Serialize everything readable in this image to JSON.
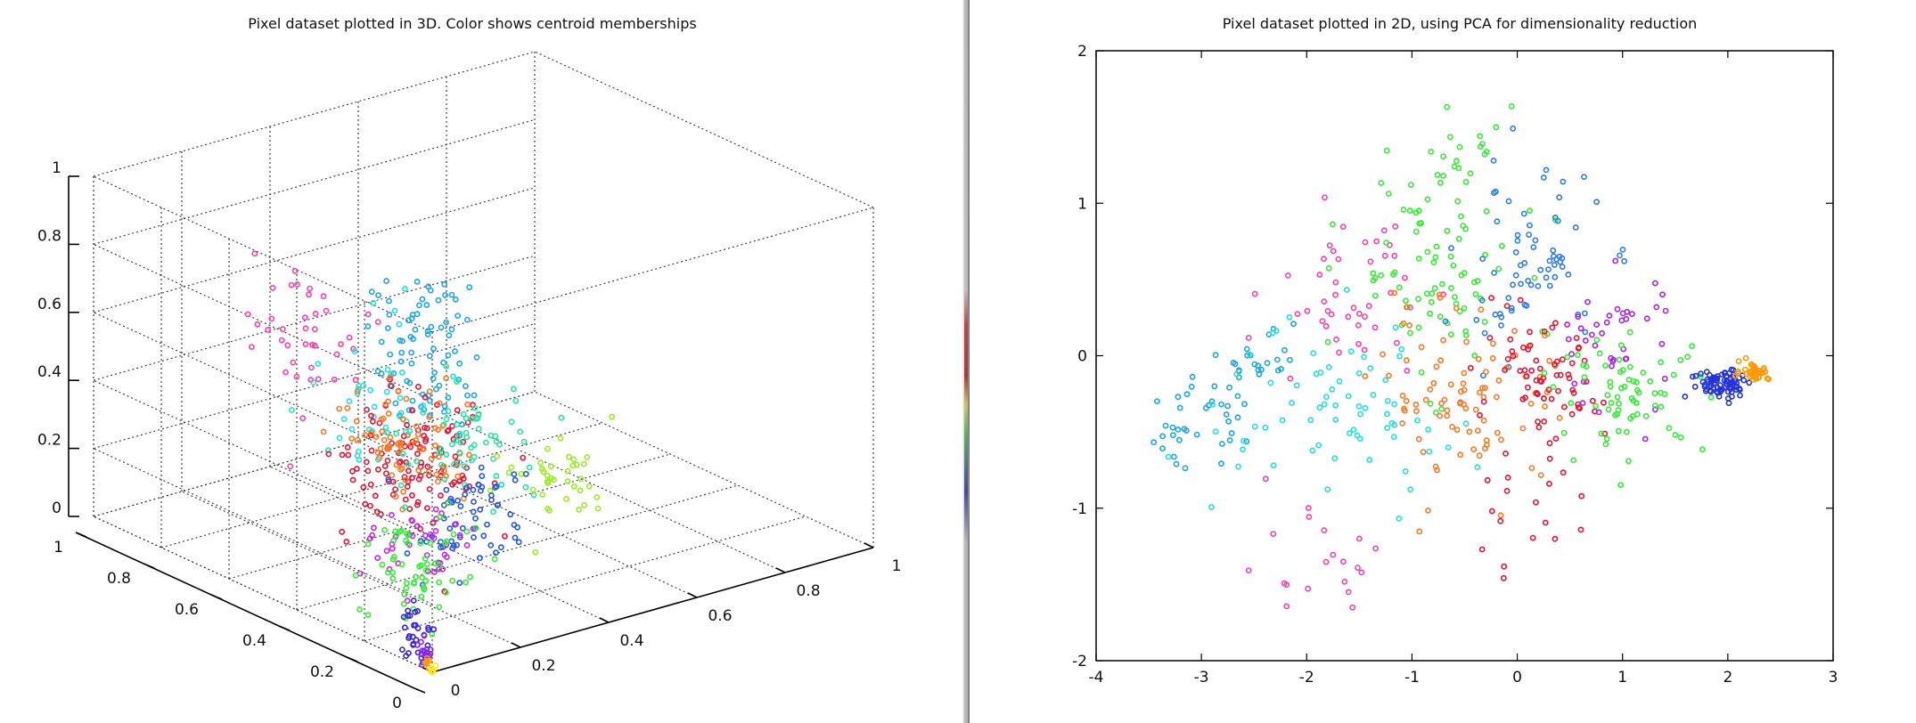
{
  "chart_data": [
    {
      "type": "scatter",
      "title": "Pixel dataset plotted in 3D. Color shows centroid memberships",
      "projection": "3d",
      "xlim": [
        0,
        1
      ],
      "ylim": [
        0,
        1
      ],
      "zlim": [
        0,
        1
      ],
      "z_ticks": [
        "0",
        "0.2",
        "0.4",
        "0.6",
        "0.8",
        "1"
      ],
      "y_ticks": [
        "0",
        "0.2",
        "0.4",
        "0.6",
        "0.8",
        "1"
      ],
      "x_ticks": [
        "0",
        "0.2",
        "0.4",
        "0.6",
        "0.8",
        "1"
      ],
      "grid": true,
      "marker": "small open circle",
      "series": [
        {
          "color": "#1aa6e8",
          "n": 80,
          "center": [
            0.12,
            0.18,
            0.82
          ],
          "spread": [
            0.05,
            0.05,
            0.12
          ]
        },
        {
          "color": "#ff3fb0",
          "n": 40,
          "center": [
            0.05,
            0.45,
            0.78
          ],
          "spread": [
            0.05,
            0.08,
            0.12
          ]
        },
        {
          "color": "#26e0e0",
          "n": 40,
          "center": [
            0.1,
            0.28,
            0.62
          ],
          "spread": [
            0.06,
            0.06,
            0.1
          ]
        },
        {
          "color": "#ee1133",
          "n": 120,
          "center": [
            0.14,
            0.24,
            0.45
          ],
          "spread": [
            0.07,
            0.07,
            0.1
          ]
        },
        {
          "color": "#ff7722",
          "n": 70,
          "center": [
            0.12,
            0.26,
            0.53
          ],
          "spread": [
            0.06,
            0.06,
            0.07
          ]
        },
        {
          "color": "#22e8a0",
          "n": 60,
          "center": [
            0.18,
            0.14,
            0.52
          ],
          "spread": [
            0.06,
            0.06,
            0.08
          ]
        },
        {
          "color": "#99ee22",
          "n": 40,
          "center": [
            0.36,
            0.1,
            0.4
          ],
          "spread": [
            0.07,
            0.05,
            0.07
          ]
        },
        {
          "color": "#2255ee",
          "n": 60,
          "center": [
            0.2,
            0.16,
            0.3
          ],
          "spread": [
            0.06,
            0.05,
            0.07
          ]
        },
        {
          "color": "#cc22ee",
          "n": 40,
          "center": [
            0.14,
            0.22,
            0.2
          ],
          "spread": [
            0.05,
            0.05,
            0.06
          ]
        },
        {
          "color": "#33ee33",
          "n": 60,
          "center": [
            0.08,
            0.16,
            0.2
          ],
          "spread": [
            0.05,
            0.05,
            0.1
          ]
        },
        {
          "color": "#3322dd",
          "n": 30,
          "center": [
            0.02,
            0.08,
            0.07
          ],
          "spread": [
            0.015,
            0.02,
            0.04
          ]
        },
        {
          "color": "#8822ee",
          "n": 15,
          "center": [
            0.01,
            0.04,
            0.03
          ],
          "spread": [
            0.01,
            0.01,
            0.02
          ]
        },
        {
          "color": "#ff9900",
          "n": 8,
          "center": [
            0.005,
            0.02,
            0.015
          ],
          "spread": [
            0.005,
            0.005,
            0.01
          ]
        },
        {
          "color": "#ffee00",
          "n": 10,
          "center": [
            0.0,
            0.0,
            0.0
          ],
          "spread": [
            0.005,
            0.005,
            0.01
          ]
        }
      ]
    },
    {
      "type": "scatter",
      "title": "Pixel dataset plotted in 2D, using PCA for dimensionality reduction",
      "xlim": [
        -4,
        3
      ],
      "ylim": [
        -2,
        2
      ],
      "x_ticks": [
        "-4",
        "-3",
        "-2",
        "-1",
        "0",
        "1",
        "2",
        "3"
      ],
      "y_ticks": [
        "-2",
        "-1",
        "0",
        "1",
        "2"
      ],
      "marker": "small open circle",
      "series": [
        {
          "color": "#1aa6e8",
          "n": 60,
          "path": [
            [
              -3.3,
              -0.6
            ],
            [
              -2.3,
              0.0
            ]
          ],
          "spread": [
            0.15,
            0.12
          ]
        },
        {
          "color": "#26e0e0",
          "n": 70,
          "center": [
            -1.7,
            -0.35
          ],
          "spread": [
            0.55,
            0.3
          ]
        },
        {
          "color": "#ff3fb0",
          "n": 45,
          "center": [
            -1.6,
            0.35
          ],
          "spread": [
            0.4,
            0.25
          ]
        },
        {
          "color": "#ff3fb0",
          "n": 20,
          "center": [
            -1.9,
            -1.35
          ],
          "spread": [
            0.4,
            0.2
          ]
        },
        {
          "color": "#33ee33",
          "n": 80,
          "center": [
            -0.8,
            0.55
          ],
          "spread": [
            0.4,
            0.35
          ]
        },
        {
          "color": "#33ee33",
          "n": 20,
          "center": [
            -0.6,
            1.3
          ],
          "spread": [
            0.3,
            0.2
          ]
        },
        {
          "color": "#2d7de8",
          "n": 70,
          "center": [
            0.1,
            0.6
          ],
          "spread": [
            0.35,
            0.3
          ]
        },
        {
          "color": "#ff7722",
          "n": 90,
          "center": [
            -0.4,
            -0.25
          ],
          "spread": [
            0.45,
            0.3
          ]
        },
        {
          "color": "#ee1133",
          "n": 70,
          "center": [
            0.2,
            -0.25
          ],
          "spread": [
            0.3,
            0.22
          ]
        },
        {
          "color": "#ee1133",
          "n": 15,
          "center": [
            0.0,
            -1.1
          ],
          "spread": [
            0.3,
            0.15
          ]
        },
        {
          "color": "#aa22ee",
          "n": 40,
          "center": [
            0.9,
            0.1
          ],
          "spread": [
            0.3,
            0.25
          ]
        },
        {
          "color": "#33ee33",
          "n": 70,
          "center": [
            1.1,
            -0.25
          ],
          "spread": [
            0.35,
            0.18
          ]
        },
        {
          "color": "#2233dd",
          "n": 80,
          "center": [
            1.95,
            -0.18
          ],
          "spread": [
            0.15,
            0.05
          ]
        },
        {
          "color": "#ff9900",
          "n": 40,
          "center": [
            2.25,
            -0.1
          ],
          "spread": [
            0.07,
            0.03
          ]
        }
      ]
    }
  ]
}
